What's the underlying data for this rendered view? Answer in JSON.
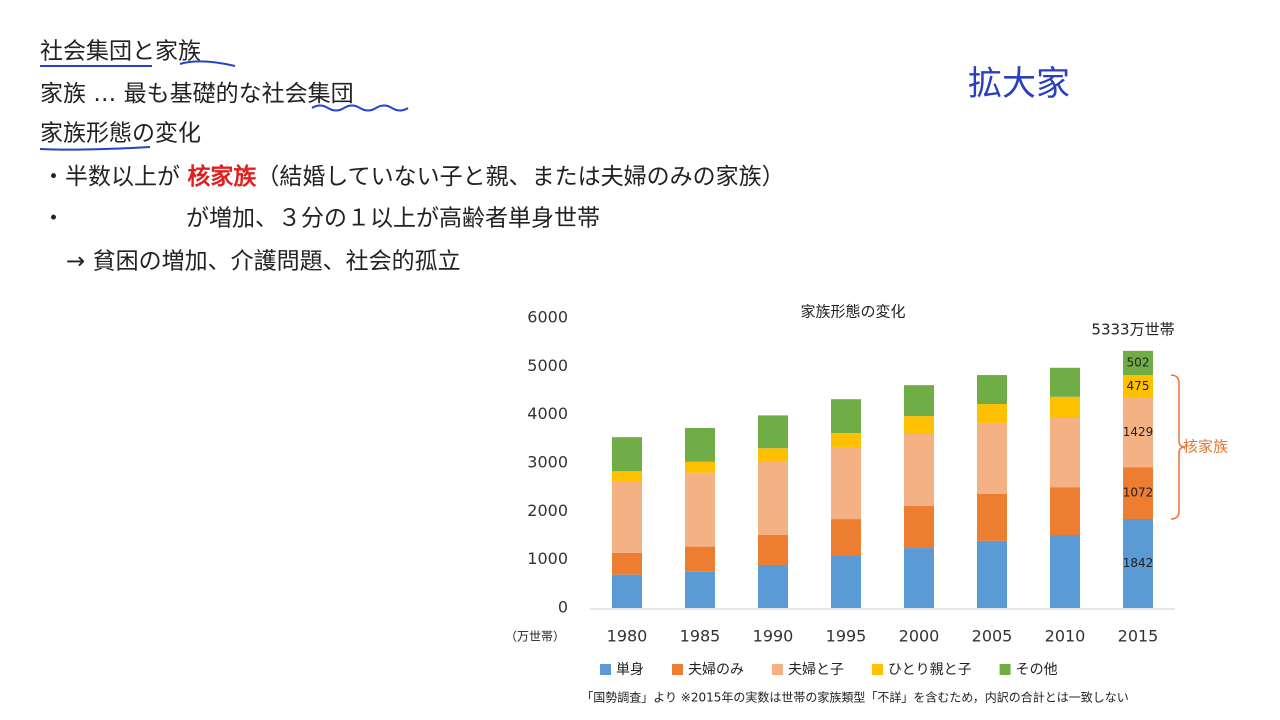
{
  "slide": {
    "heading": "社会集団と家族",
    "line1": [
      "家族 … 最も基礎的な",
      "社会集団"
    ],
    "line2": "家族形態の変化",
    "line3": [
      "・半数以上が ",
      "核家族",
      "（結婚していない子と親、または夫婦のみの家族）"
    ],
    "line4": [
      "・",
      "が増加、３分の１以上が高齢者単身世帯"
    ],
    "line5": "→ 貧困の増加、介護問題、社会的孤立",
    "handwriting": "拡大家"
  },
  "chart_data": {
    "type": "stacked_bar",
    "title": "家族形態の変化",
    "y_unit": "（万世帯）",
    "categories": [
      "1980",
      "1985",
      "1990",
      "1995",
      "2000",
      "2005",
      "2010",
      "2015"
    ],
    "ylim": [
      0,
      6000
    ],
    "yticks": [
      0,
      1000,
      2000,
      3000,
      4000,
      5000,
      6000
    ],
    "grid": false,
    "series": [
      {
        "name": "単身",
        "color": "#5b9bd5",
        "values": [
          690,
          750,
          890,
          1075,
          1240,
          1390,
          1510,
          1842
        ]
      },
      {
        "name": "夫婦のみ",
        "color": "#ed7d31",
        "values": [
          450,
          520,
          620,
          765,
          870,
          970,
          990,
          1072
        ]
      },
      {
        "name": "夫婦と子",
        "color": "#f4b183",
        "values": [
          1470,
          1530,
          1530,
          1490,
          1490,
          1470,
          1430,
          1429
        ]
      },
      {
        "name": "ひとり親と子",
        "color": "#ffc000",
        "values": [
          220,
          225,
          265,
          290,
          370,
          390,
          440,
          475
        ]
      },
      {
        "name": "その他",
        "color": "#70ad47",
        "values": [
          705,
          700,
          680,
          700,
          640,
          600,
          600,
          502
        ]
      }
    ],
    "labeled_category": 7,
    "total_label": "5333万世帯",
    "bracket_label": "核家族",
    "bracket_color": "#e87530",
    "footnote": "「国勢調査」より ※2015年の実数は世帯の家族類型「不詳」を含むため，内訳の合計とは一致しない"
  }
}
